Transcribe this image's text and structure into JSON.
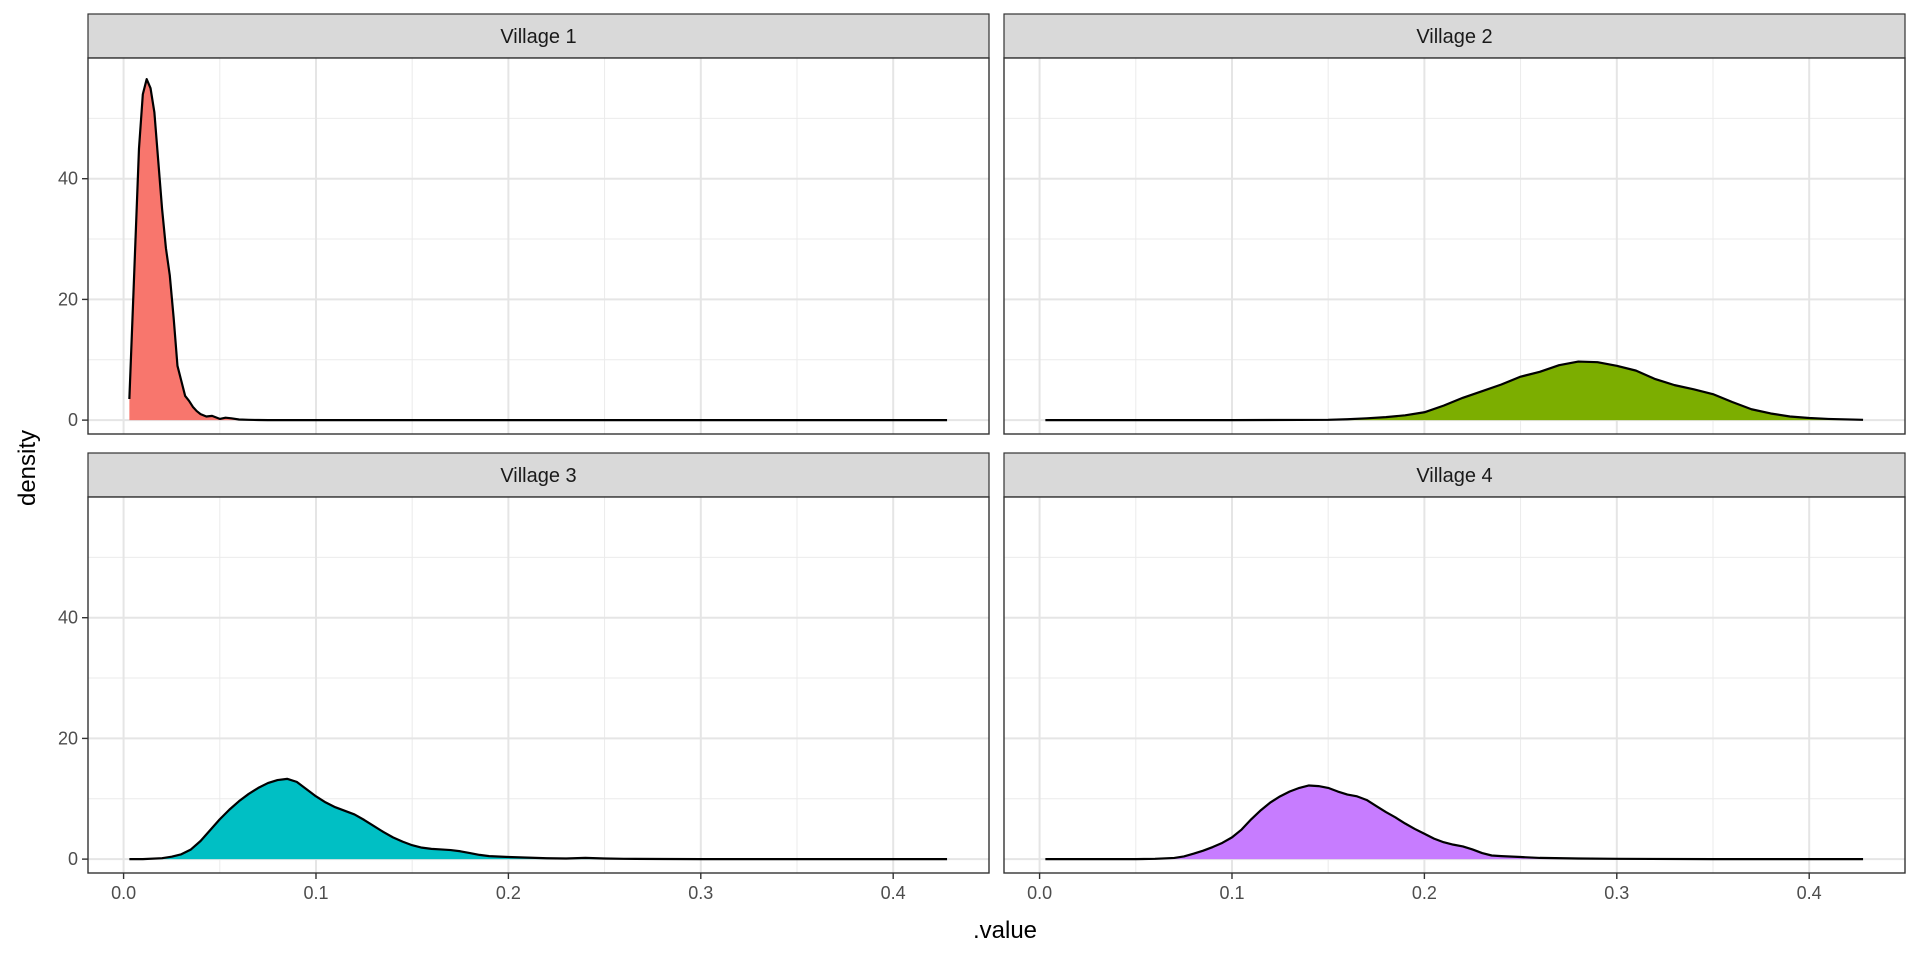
{
  "chart_data": {
    "type": "area",
    "xlabel": ".value",
    "ylabel": "density",
    "xlim": [
      -0.0185,
      0.4498
    ],
    "ylim": [
      -2.3,
      60.0
    ],
    "x_ticks": [
      0.0,
      0.1,
      0.2,
      0.3,
      0.4
    ],
    "x_tick_labels": [
      "0.0",
      "0.1",
      "0.2",
      "0.3",
      "0.4"
    ],
    "y_ticks": [
      0,
      20,
      40
    ],
    "y_tick_labels": [
      "0",
      "20",
      "40"
    ],
    "grid": true,
    "legend": "none",
    "facets": [
      {
        "label": "Village 1",
        "color": "#F8766D",
        "x": [
          0.003,
          0.005,
          0.008,
          0.01,
          0.012,
          0.014,
          0.016,
          0.018,
          0.02,
          0.022,
          0.024,
          0.026,
          0.028,
          0.03,
          0.032,
          0.034,
          0.036,
          0.038,
          0.04,
          0.043,
          0.046,
          0.05,
          0.053,
          0.056,
          0.06,
          0.065,
          0.07,
          0.075,
          0.08,
          0.1,
          0.15,
          0.2,
          0.25,
          0.3,
          0.35,
          0.4,
          0.428
        ],
        "y": [
          3.5,
          20,
          45,
          54,
          56.5,
          55,
          51,
          43,
          35,
          28.5,
          24,
          17,
          9,
          6.5,
          4,
          3.2,
          2.2,
          1.5,
          1.0,
          0.6,
          0.7,
          0.2,
          0.4,
          0.3,
          0.1,
          0.05,
          0.02,
          0,
          0,
          0,
          0,
          0,
          0,
          0,
          0,
          0,
          0
        ]
      },
      {
        "label": "Village 2",
        "color": "#7CAE00",
        "x": [
          0.003,
          0.05,
          0.1,
          0.15,
          0.16,
          0.17,
          0.18,
          0.19,
          0.2,
          0.21,
          0.22,
          0.23,
          0.24,
          0.25,
          0.26,
          0.27,
          0.28,
          0.29,
          0.3,
          0.31,
          0.32,
          0.33,
          0.34,
          0.35,
          0.36,
          0.37,
          0.38,
          0.39,
          0.4,
          0.41,
          0.428
        ],
        "y": [
          0,
          0,
          0,
          0.05,
          0.15,
          0.3,
          0.5,
          0.8,
          1.3,
          2.4,
          3.7,
          4.8,
          5.9,
          7.2,
          8.0,
          9.1,
          9.7,
          9.6,
          9.0,
          8.2,
          6.8,
          5.8,
          5.1,
          4.3,
          3.0,
          1.8,
          1.1,
          0.6,
          0.35,
          0.2,
          0.05
        ]
      },
      {
        "label": "Village 3",
        "color": "#00BFC4",
        "x": [
          0.003,
          0.01,
          0.02,
          0.025,
          0.03,
          0.035,
          0.04,
          0.045,
          0.05,
          0.055,
          0.06,
          0.065,
          0.07,
          0.075,
          0.08,
          0.085,
          0.09,
          0.095,
          0.1,
          0.105,
          0.11,
          0.115,
          0.12,
          0.125,
          0.13,
          0.135,
          0.14,
          0.145,
          0.15,
          0.155,
          0.16,
          0.165,
          0.17,
          0.175,
          0.18,
          0.185,
          0.19,
          0.2,
          0.21,
          0.22,
          0.23,
          0.24,
          0.25,
          0.26,
          0.28,
          0.3,
          0.35,
          0.4,
          0.428
        ],
        "y": [
          0,
          0,
          0.15,
          0.4,
          0.8,
          1.6,
          3.0,
          4.8,
          6.6,
          8.2,
          9.6,
          10.8,
          11.8,
          12.6,
          13.1,
          13.3,
          12.8,
          11.6,
          10.4,
          9.4,
          8.6,
          8.0,
          7.4,
          6.5,
          5.5,
          4.5,
          3.6,
          2.9,
          2.3,
          1.9,
          1.7,
          1.6,
          1.5,
          1.3,
          1.0,
          0.7,
          0.5,
          0.35,
          0.25,
          0.15,
          0.1,
          0.2,
          0.1,
          0.05,
          0.02,
          0,
          0,
          0,
          0
        ]
      },
      {
        "label": "Village 4",
        "color": "#C77CFF",
        "x": [
          0.003,
          0.05,
          0.06,
          0.07,
          0.075,
          0.08,
          0.085,
          0.09,
          0.095,
          0.1,
          0.105,
          0.11,
          0.115,
          0.12,
          0.125,
          0.13,
          0.135,
          0.14,
          0.145,
          0.15,
          0.155,
          0.16,
          0.165,
          0.17,
          0.175,
          0.18,
          0.185,
          0.19,
          0.195,
          0.2,
          0.205,
          0.21,
          0.215,
          0.22,
          0.225,
          0.23,
          0.235,
          0.24,
          0.25,
          0.26,
          0.28,
          0.3,
          0.35,
          0.4,
          0.428
        ],
        "y": [
          0,
          0,
          0.05,
          0.2,
          0.45,
          0.9,
          1.4,
          2.0,
          2.7,
          3.6,
          4.9,
          6.6,
          8.1,
          9.4,
          10.4,
          11.2,
          11.8,
          12.2,
          12.1,
          11.8,
          11.2,
          10.7,
          10.4,
          9.8,
          8.8,
          7.8,
          6.9,
          5.9,
          5.0,
          4.2,
          3.4,
          2.8,
          2.4,
          2.1,
          1.6,
          1.0,
          0.6,
          0.5,
          0.35,
          0.2,
          0.1,
          0.05,
          0,
          0,
          0
        ]
      }
    ]
  }
}
